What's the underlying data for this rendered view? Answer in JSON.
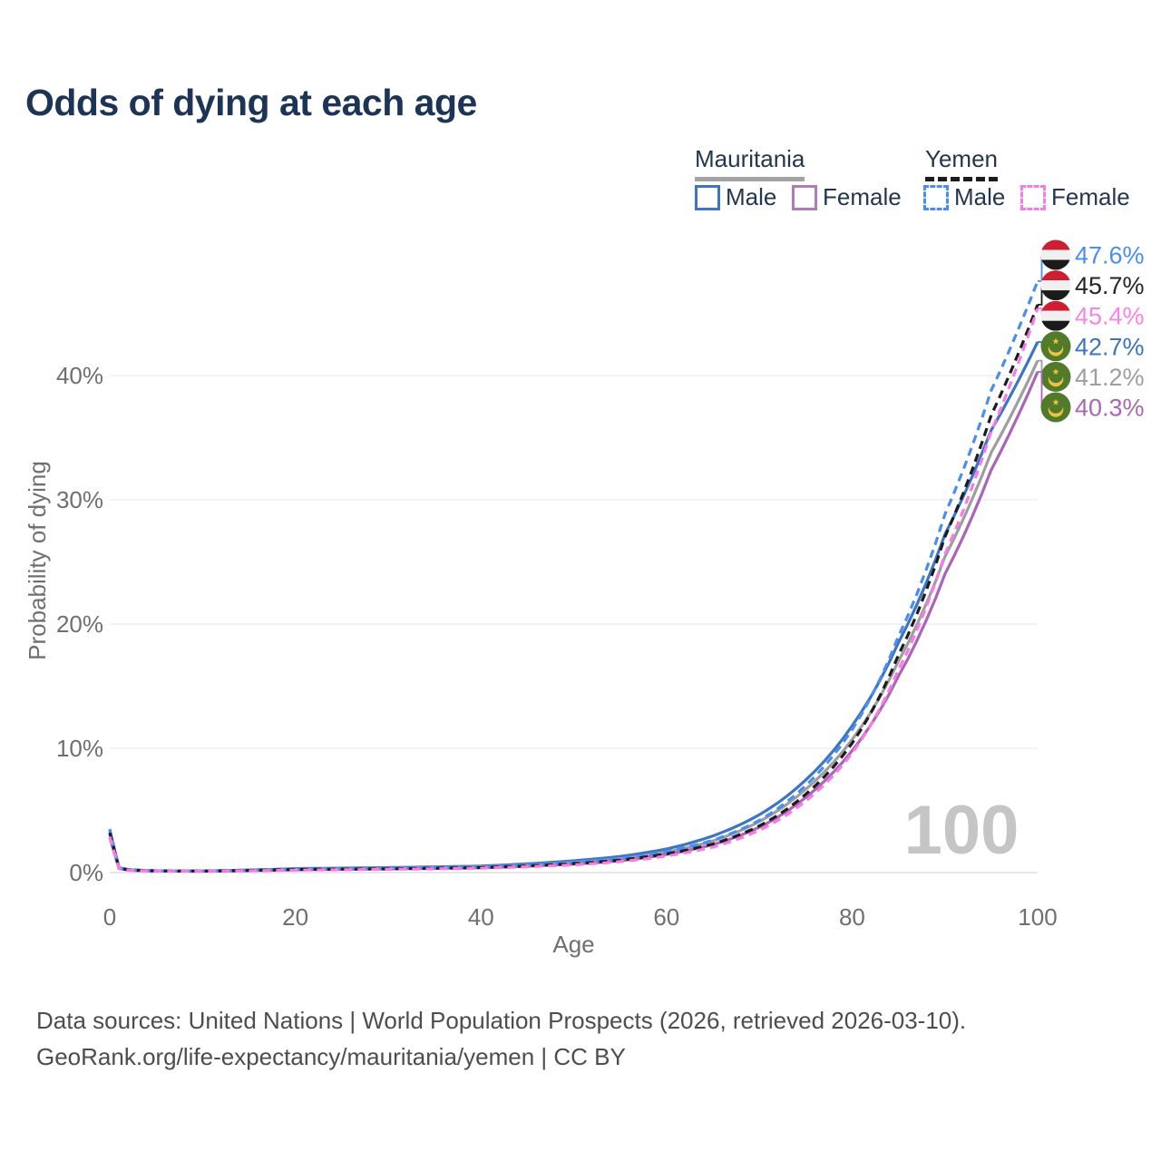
{
  "title": "Odds of dying at each age",
  "watermark_age": "100",
  "legend": {
    "groups": [
      {
        "label": "Mauritania",
        "line_style": "solid",
        "color": "#a3a3a3"
      },
      {
        "label": "Yemen",
        "line_style": "dashed",
        "color": "#1c1c1c"
      }
    ],
    "items": [
      {
        "group": "Mauritania",
        "label": "Male",
        "color": "#3d74c4",
        "dashed": false
      },
      {
        "group": "Mauritania",
        "label": "Female",
        "color": "#b379bd",
        "dashed": false
      },
      {
        "group": "Yemen",
        "label": "Male",
        "color": "#4a8df0",
        "dashed": true
      },
      {
        "group": "Yemen",
        "label": "Female",
        "color": "#f87ae6",
        "dashed": true
      }
    ]
  },
  "footer": {
    "line1": "Data sources: United Nations | World Population Prospects (2026, retrieved 2026-03-10).",
    "line2": "GeoRank.org/life-expectancy/mauritania/yemen | CC BY"
  },
  "chart_data": {
    "type": "line",
    "title": "Odds of dying at each age",
    "xlabel": "Age",
    "ylabel": "Probability of dying",
    "xlim": [
      0,
      100
    ],
    "ylim_percent": [
      0,
      50
    ],
    "x_ticks": [
      0,
      20,
      40,
      60,
      80,
      100
    ],
    "y_ticks_percent": [
      0,
      10,
      20,
      30,
      40
    ],
    "grid": "horizontal-only",
    "legend_position": "top-right",
    "anchor_ages": [
      0,
      1,
      2,
      5,
      10,
      20,
      30,
      40,
      50,
      55,
      60,
      65,
      70,
      75,
      80,
      85,
      90,
      95,
      100
    ],
    "series": [
      {
        "name": "Yemen Male",
        "flag": "yemen",
        "dashed": true,
        "color": "#4a8df0",
        "end_label": "47.6%",
        "label_color": "#4a8cf5",
        "values_percent": [
          3.5,
          0.4,
          0.25,
          0.15,
          0.13,
          0.3,
          0.34,
          0.45,
          0.85,
          1.15,
          1.7,
          2.6,
          4.2,
          7.0,
          11.5,
          19.0,
          28.8,
          38.8,
          47.6
        ]
      },
      {
        "name": "Yemen Overall",
        "flag": "yemen",
        "dashed": true,
        "color": "#1c1c1c",
        "end_label": "45.7%",
        "label_color": "#262626",
        "values_percent": [
          3.2,
          0.36,
          0.22,
          0.13,
          0.12,
          0.25,
          0.3,
          0.4,
          0.72,
          1.0,
          1.5,
          2.3,
          3.75,
          6.3,
          10.4,
          17.5,
          27.0,
          36.8,
          45.7
        ]
      },
      {
        "name": "Yemen Female",
        "flag": "yemen",
        "dashed": true,
        "color": "#f87ae6",
        "end_label": "45.4%",
        "label_color": "#f884ea",
        "values_percent": [
          2.9,
          0.33,
          0.2,
          0.12,
          0.11,
          0.2,
          0.26,
          0.35,
          0.62,
          0.88,
          1.33,
          2.05,
          3.4,
          5.75,
          9.6,
          16.3,
          25.6,
          35.5,
          45.4
        ]
      },
      {
        "name": "Mauritania Male",
        "flag": "mauritania",
        "dashed": false,
        "color": "#3d74c4",
        "end_label": "42.7%",
        "label_color": "#3d74c0",
        "values_percent": [
          3.4,
          0.38,
          0.24,
          0.14,
          0.13,
          0.32,
          0.4,
          0.52,
          0.95,
          1.3,
          1.9,
          2.95,
          4.65,
          7.45,
          11.8,
          18.5,
          27.2,
          35.6,
          42.7
        ]
      },
      {
        "name": "Mauritania Overall",
        "flag": "mauritania",
        "dashed": false,
        "color": "#9e9e9e",
        "end_label": "41.2%",
        "label_color": "#9e9e9e",
        "values_percent": [
          3.1,
          0.35,
          0.21,
          0.13,
          0.12,
          0.27,
          0.34,
          0.45,
          0.8,
          1.1,
          1.65,
          2.55,
          4.1,
          6.7,
          10.7,
          17.0,
          25.4,
          33.8,
          41.2
        ]
      },
      {
        "name": "Mauritania Female",
        "flag": "mauritania",
        "dashed": false,
        "color": "#ab64b8",
        "end_label": "40.3%",
        "label_color": "#a868b4",
        "values_percent": [
          2.8,
          0.32,
          0.19,
          0.12,
          0.11,
          0.22,
          0.29,
          0.38,
          0.68,
          0.95,
          1.45,
          2.25,
          3.65,
          6.05,
          9.8,
          15.8,
          24.0,
          32.4,
          40.3
        ]
      }
    ]
  }
}
